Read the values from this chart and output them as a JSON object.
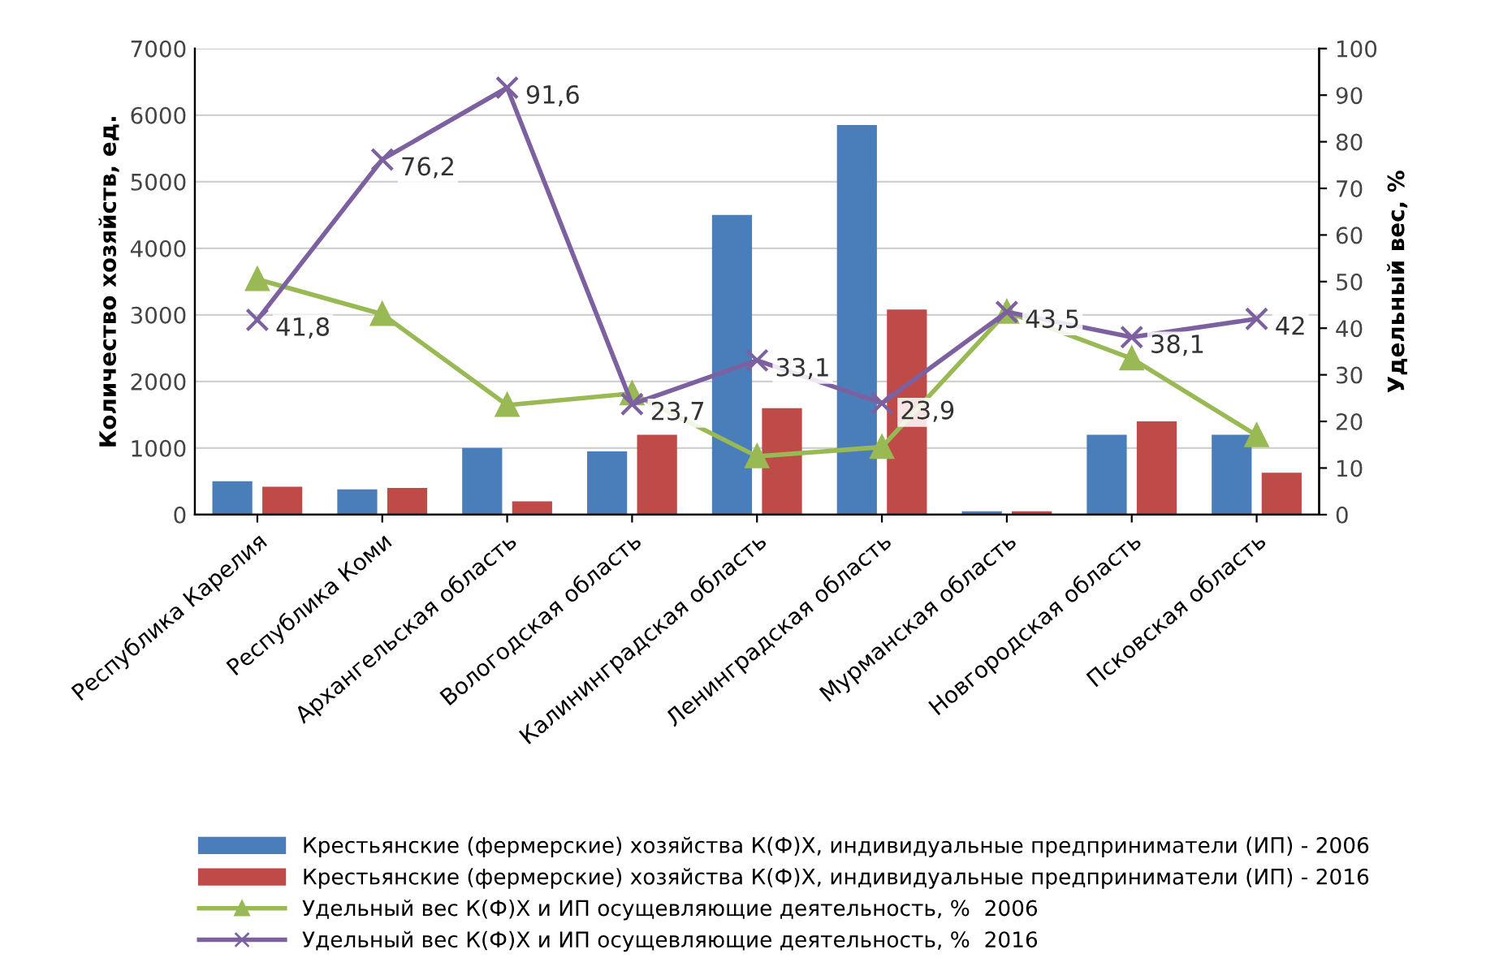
{
  "chart_data": {
    "type": "bar",
    "ylabel": "Количество хозяйств, ед.",
    "y2label": "Удельный вес, %",
    "categories": [
      "Республика Карелия",
      "Республика Коми",
      "Архангельская область",
      "Вологодская область",
      "Калининградская область",
      "Ленинградская область",
      "Мурманская область",
      "Новгородская область",
      "Псковская область"
    ],
    "series": [
      {
        "name": "Крестьянские (фермерские) хозяйства К(Ф)Х, индивидуальные предприниматели (ИП) - 2006",
        "color": "#4a7ebb",
        "values": [
          500,
          380,
          1000,
          950,
          4500,
          5850,
          50,
          1200,
          1200
        ]
      },
      {
        "name": "Крестьянские (фермерские) хозяйства К(Ф)Х, индивидуальные предприниматели (ИП) - 2016",
        "color": "#be4b48",
        "values": [
          420,
          400,
          200,
          1200,
          1600,
          3080,
          50,
          1400,
          630
        ]
      },
      {
        "name": "Удельный вес К(Ф)Х и ИП осущевляющие деятельность, %  2006",
        "type": "line",
        "axis": "y2",
        "marker": "triangle",
        "color": "#98b954",
        "values": [
          50.5,
          43,
          23.5,
          26,
          12.5,
          14.5,
          43.5,
          33.5,
          17
        ]
      },
      {
        "name": "Удельный вес К(Ф)Х и ИП осущевляющие деятельность, %  2016",
        "type": "line",
        "axis": "y2",
        "marker": "cross",
        "color": "#7d60a0",
        "values": [
          41.8,
          76.2,
          91.6,
          23.7,
          33.1,
          23.9,
          43.5,
          38.1,
          42
        ],
        "value_labels": [
          "41,8",
          "76,2",
          "91,6",
          "23,7",
          "33,1",
          "23,9",
          "43,5",
          "38,1",
          "42"
        ]
      }
    ],
    "ylim": [
      0,
      7000
    ],
    "yticks": [
      0,
      1000,
      2000,
      3000,
      4000,
      5000,
      6000,
      7000
    ],
    "y2lim": [
      0,
      100
    ],
    "y2ticks": [
      0,
      10,
      20,
      30,
      40,
      50,
      60,
      70,
      80,
      90,
      100
    ],
    "grid": "y",
    "legend": "bottom"
  }
}
